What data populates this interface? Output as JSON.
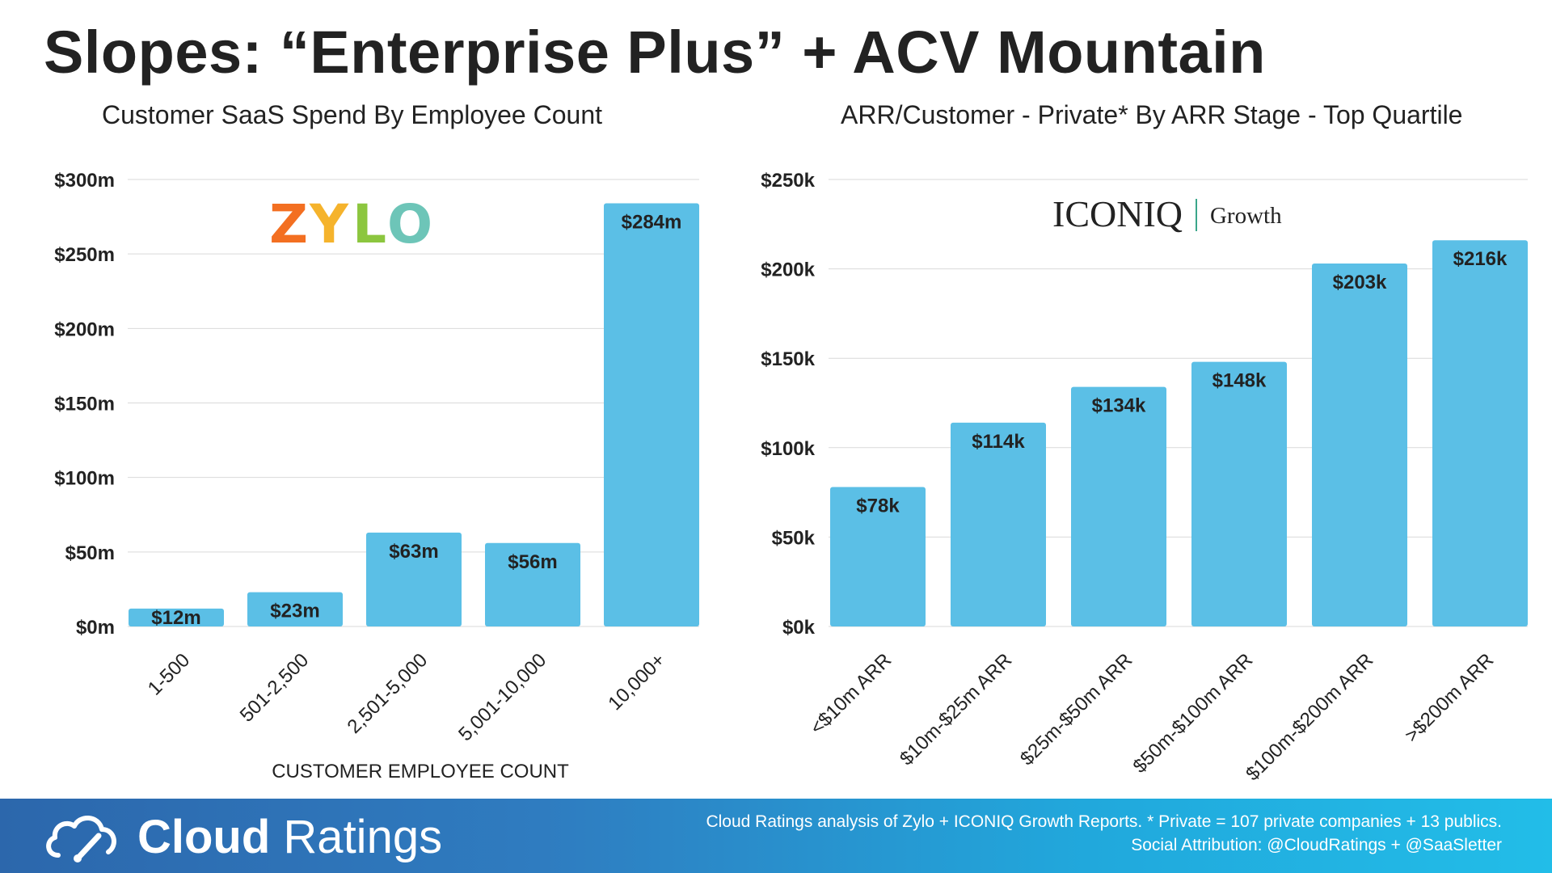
{
  "page": {
    "title": "Slopes: “Enterprise Plus” + ACV Mountain"
  },
  "colors": {
    "bar": "#5bbfe6",
    "grid": "#d9d9d9",
    "text": "#222222"
  },
  "zylo_logo": {
    "letters": [
      "Z",
      "Y",
      "L",
      "O"
    ],
    "colors": [
      "#f36f21",
      "#f5b32c",
      "#8cc63f",
      "#6dc5b8"
    ]
  },
  "iconiq_logo": {
    "brand": "ICONIQ",
    "sub": "Growth"
  },
  "chart_data": [
    {
      "type": "bar",
      "title": "Customer SaaS Spend By Employee Count",
      "xlabel": "CUSTOMER EMPLOYEE COUNT",
      "ylabel": "",
      "categories": [
        "1-500",
        "501-2,500",
        "2,501-5,000",
        "5,001-10,000",
        "10,000+"
      ],
      "values": [
        12,
        23,
        63,
        56,
        284
      ],
      "value_labels": [
        "$12m",
        "$23m",
        "$63m",
        "$56m",
        "$284m"
      ],
      "ylim": [
        0,
        300
      ],
      "yticks": [
        0,
        50,
        100,
        150,
        200,
        250,
        300
      ],
      "ytick_labels": [
        "$0m",
        "$50m",
        "$100m",
        "$150m",
        "$200m",
        "$250m",
        "$300m"
      ],
      "grid": true,
      "legend": "none"
    },
    {
      "type": "bar",
      "title": "ARR/Customer - Private* By ARR Stage - Top Quartile",
      "xlabel": "",
      "ylabel": "",
      "categories": [
        "<$10m ARR",
        "$10m-$25m ARR",
        "$25m-$50m ARR",
        "$50m-$100m ARR",
        "$100m-$200m ARR",
        ">$200m ARR"
      ],
      "values": [
        78,
        114,
        134,
        148,
        203,
        216
      ],
      "value_labels": [
        "$78k",
        "$114k",
        "$134k",
        "$148k",
        "$203k",
        "$216k"
      ],
      "ylim": [
        0,
        250
      ],
      "yticks": [
        0,
        50,
        100,
        150,
        200,
        250
      ],
      "ytick_labels": [
        "$0k",
        "$50k",
        "$100k",
        "$150k",
        "$200k",
        "$250k"
      ],
      "grid": true,
      "legend": "none"
    }
  ],
  "footer": {
    "logo_bold": "Cloud",
    "logo_light": "Ratings",
    "note_line1": "Cloud Ratings analysis of Zylo + ICONIQ Growth Reports. * Private = 107 private companies + 13 publics.",
    "note_line2": "Social Attribution: @CloudRatings + @SaaSletter"
  }
}
